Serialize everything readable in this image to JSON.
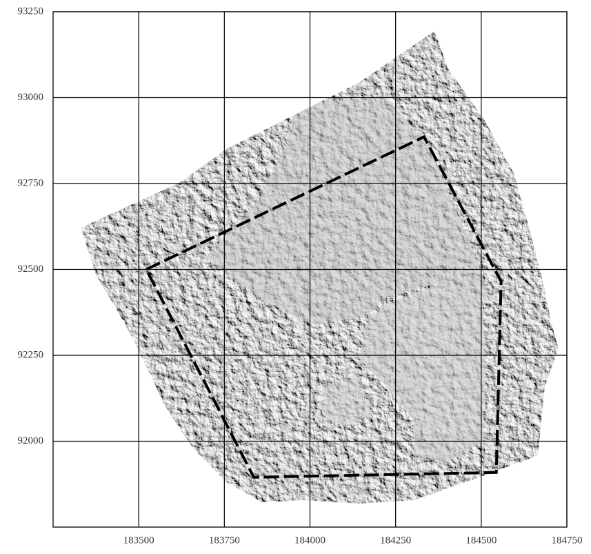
{
  "map": {
    "xlim": [
      183250,
      184750
    ],
    "ylim": [
      91750,
      93250
    ],
    "xticks": [
      183500,
      183750,
      184000,
      184250,
      184500,
      184750
    ],
    "yticks": [
      92000,
      92250,
      92500,
      92750,
      93000,
      93250
    ],
    "grid": true,
    "boundary": {
      "x": [
        183522,
        184333,
        184558,
        184544,
        183836
      ],
      "y": [
        92500,
        92886,
        92465,
        91909,
        91895
      ]
    }
  }
}
